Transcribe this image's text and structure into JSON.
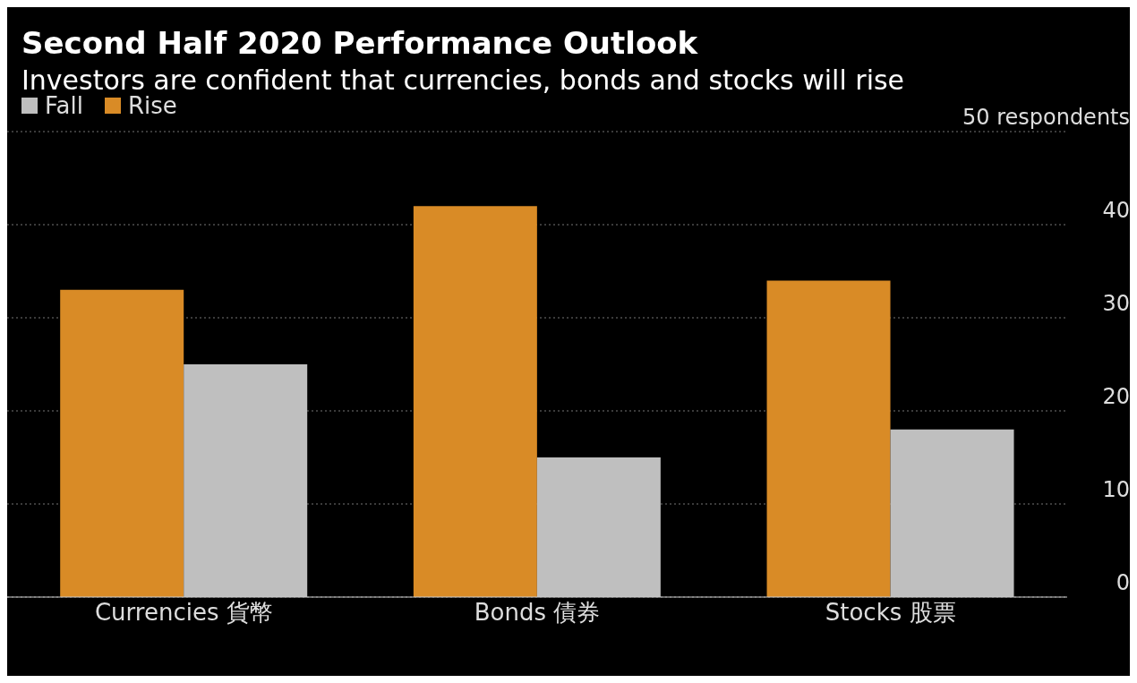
{
  "chart_data": {
    "type": "bar",
    "title": "Second Half 2020 Performance Outlook",
    "subtitle": "Investors are confident that currencies, bonds and stocks will rise",
    "categories": [
      "Currencies 貨幣",
      "Bonds 債券",
      "Stocks 股票"
    ],
    "series": [
      {
        "name": "Rise",
        "color": "#d98b26",
        "values": [
          33,
          42,
          34
        ]
      },
      {
        "name": "Fall",
        "color": "#bfbfbf",
        "values": [
          25,
          15,
          18
        ]
      }
    ],
    "ylim": [
      0,
      50
    ],
    "yticks": [
      0,
      10,
      20,
      30,
      40,
      {
        "value": 50,
        "label": "50 respondents"
      }
    ],
    "grid": "y",
    "legend": "top left"
  }
}
